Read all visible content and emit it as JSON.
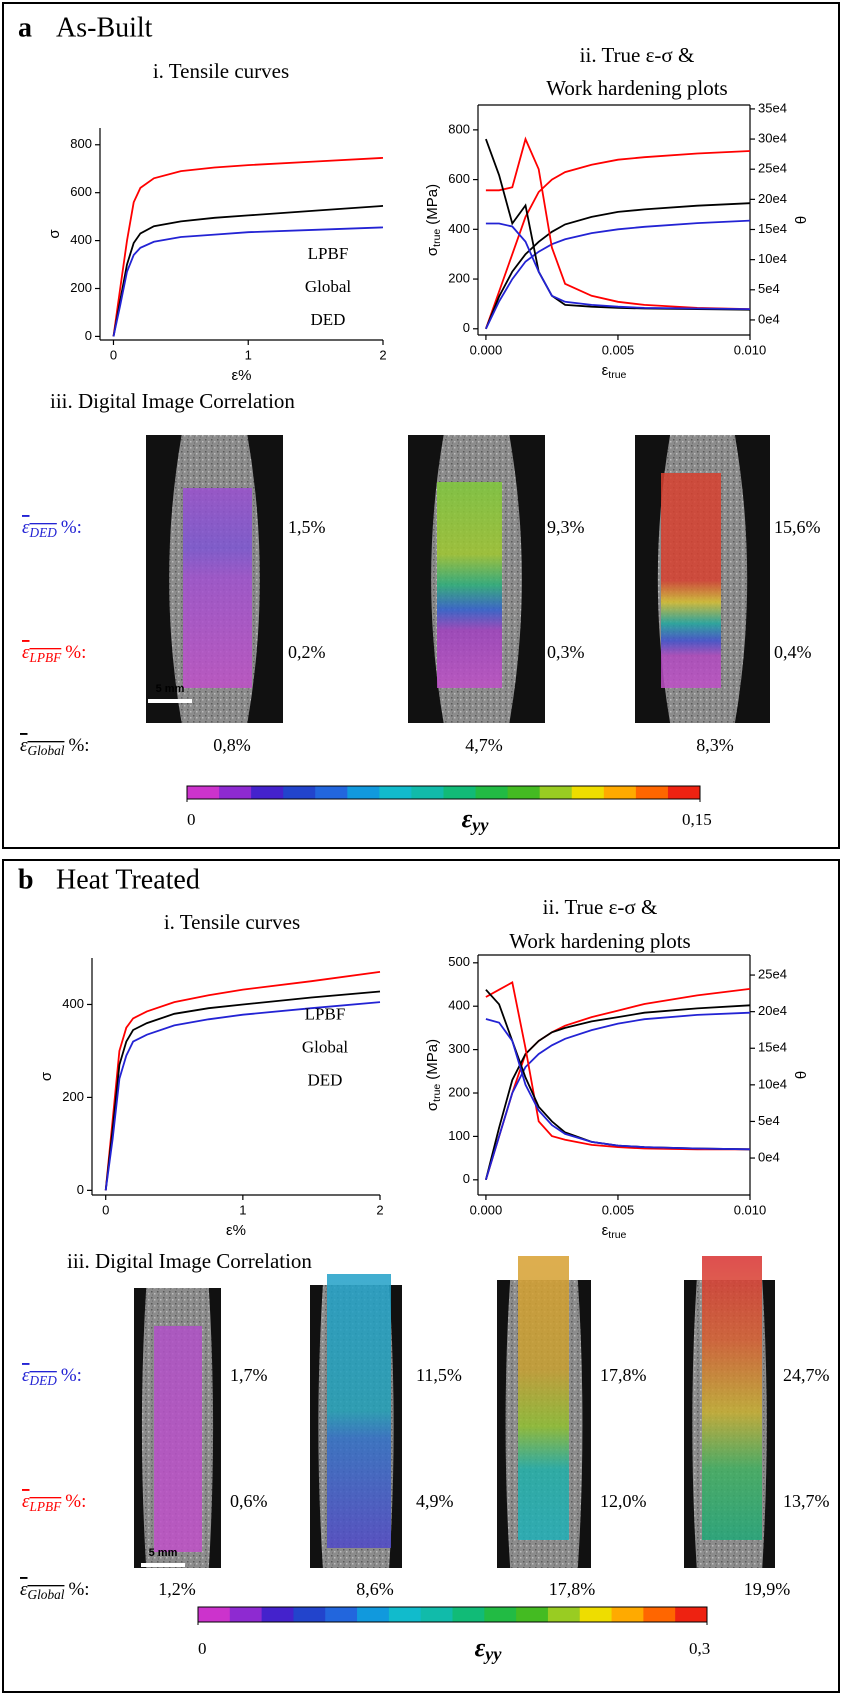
{
  "chart_data": [
    {
      "type": "line",
      "x_label": "ε%",
      "y_label": "σ",
      "x": [
        0,
        0.05,
        0.1,
        0.15,
        0.2,
        0.3,
        0.5,
        0.75,
        1,
        1.5,
        2
      ],
      "xlim": [
        -0.1,
        2
      ],
      "xticks": [
        0,
        1,
        2
      ],
      "ylim": [
        -15,
        870
      ],
      "yticks": [
        0,
        200,
        400,
        600,
        800
      ],
      "legend": "lower right",
      "series": [
        {
          "name": "LPBF",
          "color": "#ff0000",
          "values": [
            0,
            200,
            400,
            560,
            620,
            660,
            690,
            705,
            715,
            730,
            745
          ]
        },
        {
          "name": "Global",
          "color": "#000000",
          "values": [
            0,
            150,
            300,
            390,
            430,
            460,
            480,
            495,
            505,
            525,
            545
          ]
        },
        {
          "name": "DED",
          "color": "#2323d4",
          "values": [
            0,
            130,
            270,
            340,
            370,
            395,
            415,
            425,
            435,
            445,
            455
          ]
        }
      ]
    },
    {
      "type": "line",
      "x_label": "ε",
      "x_label_sub": "true",
      "y_label": "σ",
      "y_label_sub": "true",
      "y_label_unit": "(MPa)",
      "y2_label": "θ",
      "x": [
        0,
        0.0005,
        0.001,
        0.0015,
        0.002,
        0.0025,
        0.003,
        0.004,
        0.005,
        0.006,
        0.008,
        0.01
      ],
      "xlim": [
        -0.0003,
        0.01
      ],
      "xticks": [
        {
          "value": 0,
          "label": "0.000"
        },
        {
          "value": 0.005,
          "label": "0.005"
        },
        {
          "value": 0.01,
          "label": "0.010"
        }
      ],
      "ylim": [
        -25,
        900
      ],
      "yticks": [
        0,
        200,
        400,
        600,
        800
      ],
      "y2lim": [
        -25000,
        356500
      ],
      "y2ticks": [
        {
          "value": 0,
          "label": "0e4"
        },
        {
          "value": 50000,
          "label": "5e4"
        },
        {
          "value": 100000,
          "label": "10e4"
        },
        {
          "value": 150000,
          "label": "15e4"
        },
        {
          "value": 200000,
          "label": "20e4"
        },
        {
          "value": 250000,
          "label": "25e4"
        },
        {
          "value": 300000,
          "label": "30e4"
        },
        {
          "value": 350000,
          "label": "35e4"
        }
      ],
      "series": [
        {
          "color": "#ff0000",
          "values": [
            0,
            150,
            300,
            450,
            550,
            600,
            630,
            660,
            680,
            690,
            705,
            715
          ]
        },
        {
          "color": "#000000",
          "values": [
            0,
            130,
            230,
            300,
            350,
            390,
            420,
            450,
            470,
            480,
            495,
            505
          ]
        },
        {
          "color": "#2323d4",
          "values": [
            0,
            110,
            200,
            270,
            310,
            340,
            360,
            385,
            400,
            410,
            425,
            435
          ]
        },
        {
          "color": "#ff0000",
          "axis": "y2",
          "values": [
            215000,
            215000,
            220000,
            300000,
            250000,
            120000,
            60000,
            40000,
            30000,
            25000,
            20000,
            18000
          ]
        },
        {
          "color": "#000000",
          "axis": "y2",
          "values": [
            300000,
            240000,
            160000,
            190000,
            80000,
            40000,
            25000,
            22000,
            20000,
            19000,
            18000,
            17000
          ]
        },
        {
          "color": "#2323d4",
          "axis": "y2",
          "values": [
            160000,
            160000,
            155000,
            130000,
            80000,
            40000,
            30000,
            25000,
            22000,
            20000,
            19000,
            18000
          ]
        }
      ]
    },
    {
      "type": "line",
      "x_label": "ε%",
      "y_label": "σ",
      "x": [
        0,
        0.05,
        0.1,
        0.15,
        0.2,
        0.3,
        0.5,
        0.75,
        1,
        1.5,
        2
      ],
      "xlim": [
        -0.1,
        2
      ],
      "xticks": [
        0,
        1,
        2
      ],
      "ylim": [
        -10,
        500
      ],
      "yticks": [
        0,
        200,
        400
      ],
      "legend": "center right",
      "series": [
        {
          "name": "LPBF",
          "color": "#ff0000",
          "values": [
            0,
            150,
            300,
            350,
            370,
            385,
            405,
            420,
            432,
            450,
            470
          ]
        },
        {
          "name": "Global",
          "color": "#000000",
          "values": [
            0,
            130,
            270,
            320,
            345,
            360,
            380,
            392,
            400,
            415,
            428
          ]
        },
        {
          "name": "DED",
          "color": "#2323d4",
          "values": [
            0,
            110,
            240,
            290,
            320,
            335,
            355,
            368,
            378,
            392,
            405
          ]
        }
      ]
    },
    {
      "type": "line",
      "x_label": "ε",
      "x_label_sub": "true",
      "y_label": "σ",
      "y_label_sub": "true",
      "y_label_unit": "(MPa)",
      "y2_label": "θ",
      "x": [
        0,
        0.0005,
        0.001,
        0.0015,
        0.002,
        0.0025,
        0.003,
        0.004,
        0.005,
        0.006,
        0.008,
        0.01
      ],
      "xlim": [
        -0.0003,
        0.01
      ],
      "xticks": [
        {
          "value": 0,
          "label": "0.000"
        },
        {
          "value": 0.005,
          "label": "0.005"
        },
        {
          "value": 0.01,
          "label": "0.010"
        }
      ],
      "ylim": [
        -35,
        518
      ],
      "yticks": [
        0,
        100,
        200,
        300,
        400,
        500
      ],
      "y2lim": [
        -50500,
        277400
      ],
      "y2ticks": [
        {
          "value": 0,
          "label": "0e4"
        },
        {
          "value": 50000,
          "label": "5e4"
        },
        {
          "value": 100000,
          "label": "10e4"
        },
        {
          "value": 150000,
          "label": "15e4"
        },
        {
          "value": 200000,
          "label": "20e4"
        },
        {
          "value": 250000,
          "label": "25e4"
        }
      ],
      "series": [
        {
          "color": "#ff0000",
          "values": [
            0,
            100,
            200,
            290,
            320,
            340,
            355,
            375,
            390,
            405,
            425,
            440
          ]
        },
        {
          "color": "#000000",
          "values": [
            0,
            120,
            230,
            290,
            320,
            340,
            350,
            365,
            375,
            385,
            395,
            402
          ]
        },
        {
          "color": "#2323d4",
          "values": [
            0,
            100,
            200,
            260,
            290,
            310,
            325,
            345,
            360,
            370,
            380,
            385
          ]
        },
        {
          "color": "#ff0000",
          "axis": "y2",
          "values": [
            220000,
            230000,
            240000,
            150000,
            50000,
            30000,
            25000,
            18000,
            15000,
            13000,
            12000,
            12000
          ]
        },
        {
          "color": "#000000",
          "axis": "y2",
          "values": [
            230000,
            210000,
            160000,
            110000,
            70000,
            50000,
            35000,
            22000,
            17000,
            15000,
            13000,
            12000
          ]
        },
        {
          "color": "#2323d4",
          "axis": "y2",
          "values": [
            190000,
            185000,
            160000,
            100000,
            65000,
            45000,
            33000,
            22000,
            17000,
            15000,
            13000,
            12000
          ]
        }
      ]
    }
  ],
  "panels": [
    {
      "label": "a",
      "title": "As-Built",
      "tensile_title": "i. Tensile curves",
      "hardening_title": [
        "ii. True ε-σ &",
        "Work hardening plots"
      ],
      "dic_title": "iii. Digital Image Correlation",
      "dic": {
        "scale_bar": "5 mm",
        "rows": [
          {
            "symbol": "ε",
            "sub": "DED",
            "suffix": "%:",
            "color": "#2323d4",
            "values": [
              "1,5%",
              "9,3%",
              "15,6%"
            ]
          },
          {
            "symbol": "ε",
            "sub": "LPBF",
            "suffix": "%:",
            "color": "#ff0000",
            "values": [
              "0,2%",
              "0,3%",
              "0,4%"
            ]
          },
          {
            "symbol": "ε",
            "sub": "Global",
            "suffix": "%:",
            "color": "#000000",
            "values": [
              "0,8%",
              "4,7%",
              "8,3%"
            ]
          }
        ]
      },
      "colorbar": {
        "symbol": "ε",
        "sub": "yy",
        "lim": [
          0,
          0.15
        ],
        "ticks": [
          0,
          {
            "value": 0.15,
            "label": "0,15"
          }
        ]
      }
    },
    {
      "label": "b",
      "title": "Heat Treated",
      "tensile_title": "i. Tensile curves",
      "hardening_title": [
        "ii. True ε-σ &",
        "Work hardening plots"
      ],
      "dic_title": "iii. Digital Image Correlation",
      "dic": {
        "scale_bar": "5 mm",
        "rows": [
          {
            "symbol": "ε",
            "sub": "DED",
            "suffix": "%:",
            "color": "#2323d4",
            "values": [
              "1,7%",
              "11,5%",
              "17,8%",
              "24,7%"
            ]
          },
          {
            "symbol": "ε",
            "sub": "LPBF",
            "suffix": "%:",
            "color": "#ff0000",
            "values": [
              "0,6%",
              "4,9%",
              "12,0%",
              "13,7%"
            ]
          },
          {
            "symbol": "ε",
            "sub": "Global",
            "suffix": "%:",
            "color": "#000000",
            "values": [
              "1,2%",
              "8,6%",
              "17,8%",
              "19,9%"
            ]
          }
        ]
      },
      "colorbar": {
        "symbol": "ε",
        "sub": "yy",
        "lim": [
          0,
          0.3
        ],
        "ticks": [
          0,
          {
            "value": 0.3,
            "label": "0,3"
          }
        ]
      }
    }
  ]
}
